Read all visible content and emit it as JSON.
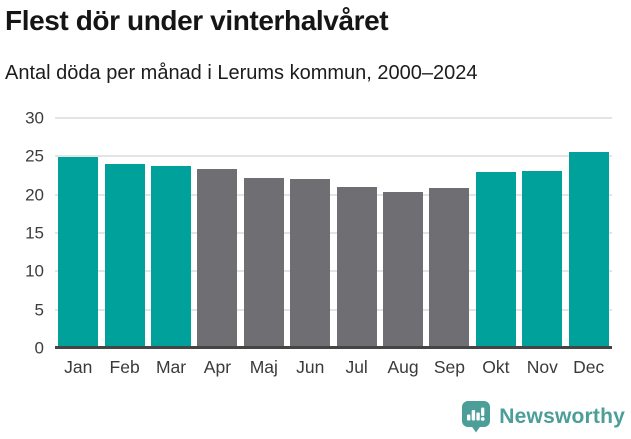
{
  "header": {
    "title": "Flest dör under vinterhalvåret",
    "subtitle": "Antal döda per månad i Lerums kommun, 2000–2024"
  },
  "chart_data": {
    "type": "bar",
    "title": "Flest dör under vinterhalvåret",
    "subtitle": "Antal döda per månad i Lerums kommun, 2000–2024",
    "categories": [
      "Jan",
      "Feb",
      "Mar",
      "Apr",
      "Maj",
      "Jun",
      "Jul",
      "Aug",
      "Sep",
      "Okt",
      "Nov",
      "Dec"
    ],
    "values": [
      24.9,
      24.0,
      23.7,
      23.4,
      22.2,
      22.0,
      21.0,
      20.4,
      20.9,
      22.9,
      23.1,
      25.6
    ],
    "highlighted": [
      true,
      true,
      true,
      false,
      false,
      false,
      false,
      false,
      false,
      true,
      true,
      true
    ],
    "xlabel": "",
    "ylabel": "",
    "ylim": [
      0,
      30
    ],
    "yticks": [
      0,
      5,
      10,
      15,
      20,
      25,
      30
    ],
    "grid": true,
    "legend": "none",
    "colors": {
      "highlight": "#00A19A",
      "base": "#6E6E73",
      "gridline": "#e4e4e4",
      "axis": "#454545"
    }
  },
  "footer": {
    "brand": "Newsworthy",
    "brand_color": "#4C9E99",
    "logo_icon": "bar-chart-speech-bubble-icon"
  }
}
